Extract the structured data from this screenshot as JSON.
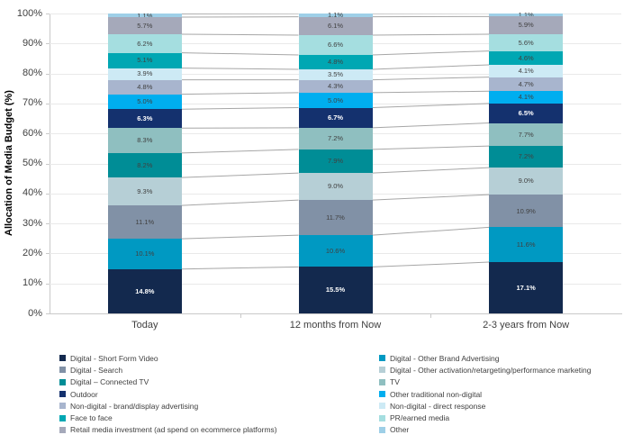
{
  "chart_data": {
    "type": "bar",
    "subtype": "stacked-100",
    "title": "",
    "xlabel": "",
    "ylabel": "Allocation of Media Budget (%)",
    "ylim": [
      0,
      100
    ],
    "yticks": [
      "0%",
      "10%",
      "20%",
      "30%",
      "40%",
      "50%",
      "60%",
      "70%",
      "80%",
      "90%",
      "100%"
    ],
    "grid": true,
    "legend_position": "bottom-two-columns",
    "categories": [
      "Today",
      "12 months from Now",
      "2-3 years from Now"
    ],
    "series": [
      {
        "name": "Digital - Short Form Video",
        "color": "#13294E",
        "values": [
          14.8,
          15.5,
          17.1
        ],
        "labels": [
          "14.8%",
          "15.5%",
          "17.1%"
        ],
        "label_color": "#FFFFFF"
      },
      {
        "name": "Digital - Other Brand Advertising",
        "color": "#0099C2",
        "values": [
          10.1,
          10.6,
          11.6
        ],
        "labels": [
          "10.1%",
          "10.6%",
          "11.6%"
        ]
      },
      {
        "name": "Digital - Search",
        "color": "#8191A6",
        "values": [
          11.1,
          11.7,
          10.9
        ],
        "labels": [
          "11.1%",
          "11.7%",
          "10.9%"
        ]
      },
      {
        "name": "Digital - Other activation/retargeting/performance marketing",
        "color": "#B6CFD6",
        "values": [
          9.3,
          9.0,
          9.0
        ],
        "labels": [
          "9.3%",
          "9.0%",
          "9.0%"
        ]
      },
      {
        "name": "Digital – Connected TV",
        "color": "#008D96",
        "values": [
          8.2,
          7.9,
          7.2
        ],
        "labels": [
          "8.2%",
          "7.9%",
          "7.2%"
        ]
      },
      {
        "name": "TV",
        "color": "#8FBFC0",
        "values": [
          8.3,
          7.2,
          7.7
        ],
        "labels": [
          "8.3%",
          "7.2%",
          "7.7%"
        ]
      },
      {
        "name": "Outdoor",
        "color": "#14316E",
        "values": [
          6.3,
          6.7,
          6.5
        ],
        "labels": [
          "6.3%",
          "6.7%",
          "6.5%"
        ],
        "label_color": "#FFFFFF"
      },
      {
        "name": "Other traditional non-digital",
        "color": "#00AEEF",
        "values": [
          5.0,
          5.0,
          4.1
        ],
        "labels": [
          "5.0%",
          "5.0%",
          "4.1%"
        ]
      },
      {
        "name": "Non-digital - brand/display advertising",
        "color": "#A8B5CE",
        "values": [
          4.8,
          4.3,
          4.7
        ],
        "labels": [
          "4.8%",
          "4.3%",
          "4.7%"
        ]
      },
      {
        "name": "Non-digital - direct response",
        "color": "#CDEAF5",
        "values": [
          3.9,
          3.5,
          4.1
        ],
        "labels": [
          "3.9%",
          "3.5%",
          "4.1%"
        ]
      },
      {
        "name": "Face to face",
        "color": "#00A7B3",
        "values": [
          5.1,
          4.8,
          4.6
        ],
        "labels": [
          "5.1%",
          "4.8%",
          "4.6%"
        ]
      },
      {
        "name": "PR/earned media",
        "color": "#A5DEE0",
        "values": [
          6.2,
          6.6,
          5.6
        ],
        "labels": [
          "6.2%",
          "6.6%",
          "5.6%"
        ]
      },
      {
        "name": "Retail media investment (ad spend on ecommerce platforms)",
        "color": "#A5A9BA",
        "values": [
          5.7,
          6.1,
          5.9
        ],
        "labels": [
          "5.7%",
          "6.1%",
          "5.9%"
        ]
      },
      {
        "name": "Other",
        "color": "#9ECFE7",
        "values": [
          1.1,
          1.1,
          1.1
        ],
        "labels": [
          "1.1%",
          "1.1%",
          "1.1%"
        ]
      }
    ],
    "colors": {
      "grid": "#E9E9E9",
      "axis": "#C9C9C9",
      "connector": "#A6A6A6",
      "text": "#404040"
    }
  }
}
